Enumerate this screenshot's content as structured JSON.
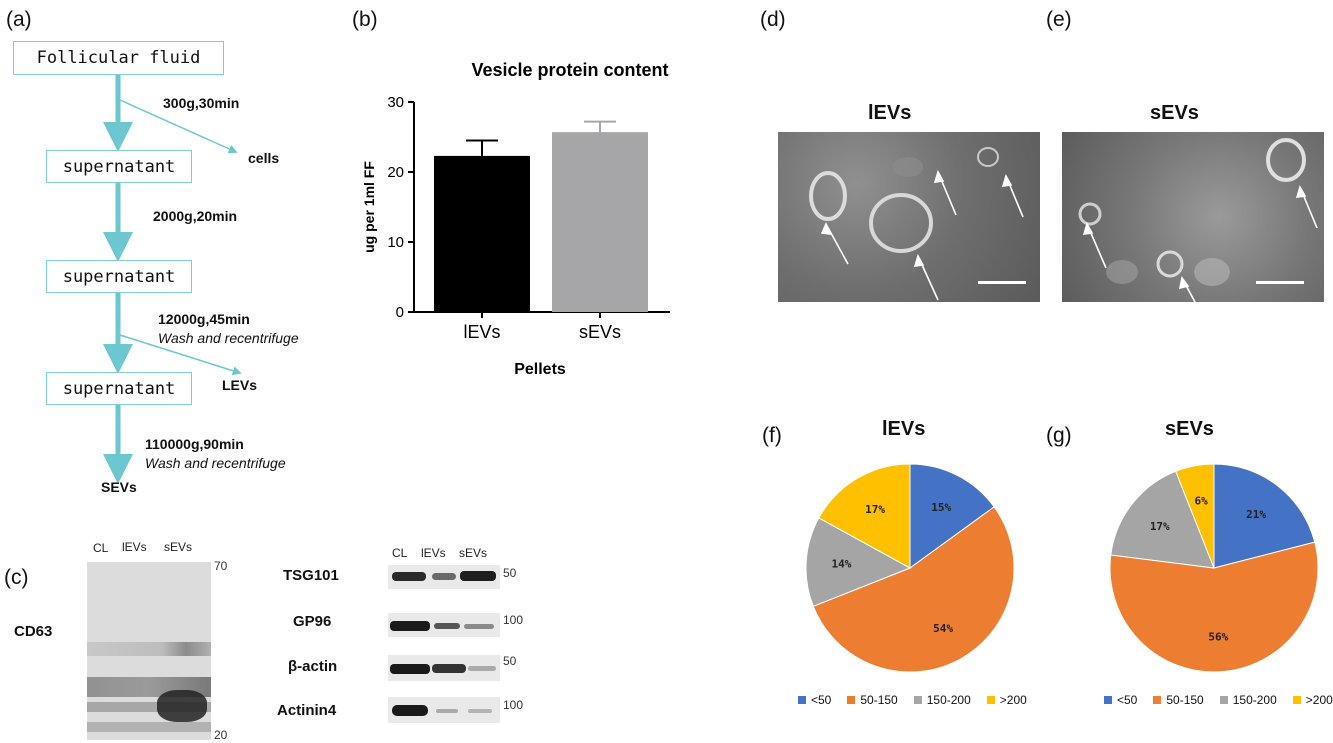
{
  "panels": {
    "a": "(a)",
    "b": "(b)",
    "c": "(c)",
    "d": "(d)",
    "e": "(e)",
    "f": "(f)",
    "g": "(g)"
  },
  "flow": {
    "start": "Follicular fluid",
    "supernatant": "supernatant",
    "steps": [
      "300g,30min",
      "2000g,20min",
      "12000g,45min",
      "110000g,90min"
    ],
    "wash": "Wash and recentrifuge",
    "outputs": {
      "cells": "cells",
      "levs": "LEVs",
      "sevs": "SEVs"
    }
  },
  "colors": {
    "flow_arrow": "#6cc7d0",
    "bar_levs": "#000000",
    "bar_sevs": "#a6a6a8",
    "pie": [
      "#4472c4",
      "#ed7d31",
      "#a5a5a5",
      "#ffc000"
    ]
  },
  "western": {
    "lanes_left": [
      "CL",
      "lEVs",
      "sEVs"
    ],
    "cd63_label": "CD63",
    "cd63_mw": [
      "70",
      "20"
    ],
    "lanes_right": [
      "CL",
      "lEVs",
      "sEVs"
    ],
    "proteins": [
      {
        "name": "TSG101",
        "mw": "50"
      },
      {
        "name": "GP96",
        "mw": "100"
      },
      {
        "name": "β-actin",
        "mw": "50"
      },
      {
        "name": "Actinin4",
        "mw": "100"
      }
    ]
  },
  "em": {
    "d_title": "lEVs",
    "e_title": "sEVs"
  },
  "chart_data": [
    {
      "type": "bar",
      "title": "Vesicle protein content",
      "categories": [
        "lEVs",
        "sEVs"
      ],
      "values": [
        22.3,
        25.7
      ],
      "errors": [
        2.2,
        1.5
      ],
      "xlabel": "Pellets",
      "ylabel": "ug per 1ml FF",
      "ylim": [
        0,
        30
      ],
      "yticks": [
        "0",
        "10",
        "20",
        "30"
      ]
    },
    {
      "type": "pie",
      "title": "lEVs",
      "categories": [
        "<50",
        "50-150",
        "150-200",
        ">200"
      ],
      "values": [
        15,
        54,
        14,
        17
      ],
      "labels": [
        "15%",
        "54%",
        "14%",
        "17%"
      ]
    },
    {
      "type": "pie",
      "title": "sEVs",
      "categories": [
        "<50",
        "50-150",
        "150-200",
        ">200"
      ],
      "values": [
        21,
        56,
        17,
        6
      ],
      "labels": [
        "21%",
        "56%",
        "17%",
        "6%"
      ]
    }
  ]
}
